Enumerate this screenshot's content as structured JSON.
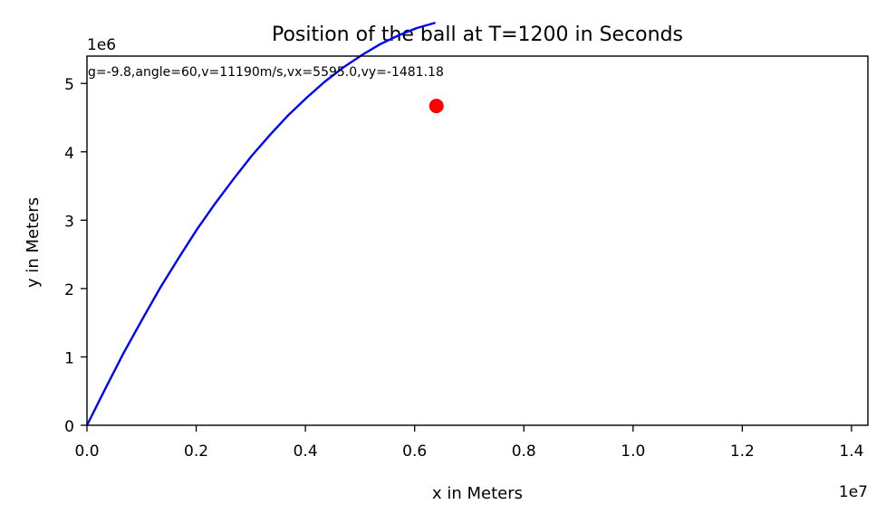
{
  "chart_data": {
    "type": "line",
    "title": "Position of the ball at T=1200 in Seconds",
    "xlabel": "x in Meters",
    "ylabel": "y in Meters",
    "x_offset_label": "1e7",
    "y_offset_label": "1e6",
    "annotation": "g=-9.8,angle=60,v=11190m/s,vx=5595.0,vy=-1481.18",
    "xlim": [
      0,
      1.43
    ],
    "ylim": [
      0,
      5.4
    ],
    "x_ticks": [
      0.0,
      0.2,
      0.4,
      0.6,
      0.8,
      1.0,
      1.2,
      1.4
    ],
    "x_tick_labels": [
      "0.0",
      "0.2",
      "0.4",
      "0.6",
      "0.8",
      "1.0",
      "1.2",
      "1.4"
    ],
    "y_ticks": [
      0,
      1,
      2,
      3,
      4,
      5
    ],
    "y_tick_labels": [
      "0",
      "1",
      "2",
      "3",
      "4",
      "5"
    ],
    "grid": false,
    "colors": {
      "line": "#0000ff",
      "marker": "#ff0000"
    },
    "series": [
      {
        "x": [
          0.0,
          0.034,
          0.067,
          0.101,
          0.134,
          0.168,
          0.201,
          0.235,
          0.269,
          0.302,
          0.336,
          0.369,
          0.403,
          0.436,
          0.47,
          0.504,
          0.537,
          0.571,
          0.604,
          0.638
        ],
        "y": [
          0.0,
          0.541,
          1.056,
          1.546,
          2.01,
          2.448,
          2.861,
          3.248,
          3.609,
          3.944,
          4.254,
          4.538,
          4.797,
          5.03,
          5.237,
          5.419,
          5.575,
          5.705,
          5.81,
          5.889
        ]
      }
    ],
    "marker_point": {
      "x": 0.6399,
      "y": 4.67
    }
  }
}
